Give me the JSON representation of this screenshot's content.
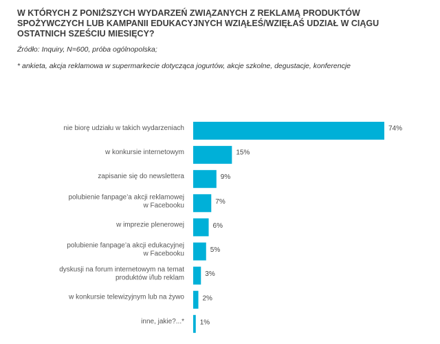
{
  "header": {
    "title_lines": [
      "W KTÓRYCH Z PONIŻSZYCH WYDARZEŃ ZWIĄZANYCH Z REKLAMĄ PRODUKTÓW",
      "SPOŻYWCZYCH LUB KAMPANII EDUKACYJNYCH WZIĄŁEŚ/WZIĘŁAŚ UDZIAŁ W CIĄGU",
      "OSTATNICH SZEŚCIU MIESIĘCY?"
    ],
    "source": "Źródło: Inquiry, N=600, próba ogólnopolska;",
    "note": "* ankieta, akcja reklamowa w supermarkecie dotycząca jogurtów, akcje szkolne, degustacje, konferencje"
  },
  "chart_data": {
    "type": "bar",
    "orientation": "horizontal",
    "title": "W KTÓRYCH Z PONIŻSZYCH WYDARZEŃ ZWIĄZANYCH Z REKLAMĄ PRODUKTÓW SPOŻYWCZYCH LUB KAMPANII EDUKACYJNYCH WZIĄŁEŚ/WZIĘŁAŚ UDZIAŁ W CIĄGU OSTATNICH SZEŚCIU MIESIĘCY?",
    "xlabel": "",
    "ylabel": "",
    "xlim": [
      0,
      74
    ],
    "grid": false,
    "bar_color": "#00b0d8",
    "categories": [
      [
        "nie biorę udziału w takich wydarzeniach"
      ],
      [
        "w konkursie internetowym"
      ],
      [
        "zapisanie się do newslettera"
      ],
      [
        "polubienie fanpage’a akcji reklamowej",
        "w Facebooku"
      ],
      [
        "w imprezie plenerowej"
      ],
      [
        "polubienie fanpage’a akcji edukacyjnej",
        "w Facebooku"
      ],
      [
        "dyskusji na forum internetowym na temat",
        "produktów i/lub reklam"
      ],
      [
        "w konkursie telewizyjnym lub na żywo"
      ],
      [
        "inne, jakie?...*"
      ]
    ],
    "values": [
      74,
      15,
      9,
      7,
      6,
      5,
      3,
      2,
      1
    ],
    "value_labels": [
      "74%",
      "15%",
      "9%",
      "7%",
      "6%",
      "5%",
      "3%",
      "2%",
      "1%"
    ]
  }
}
